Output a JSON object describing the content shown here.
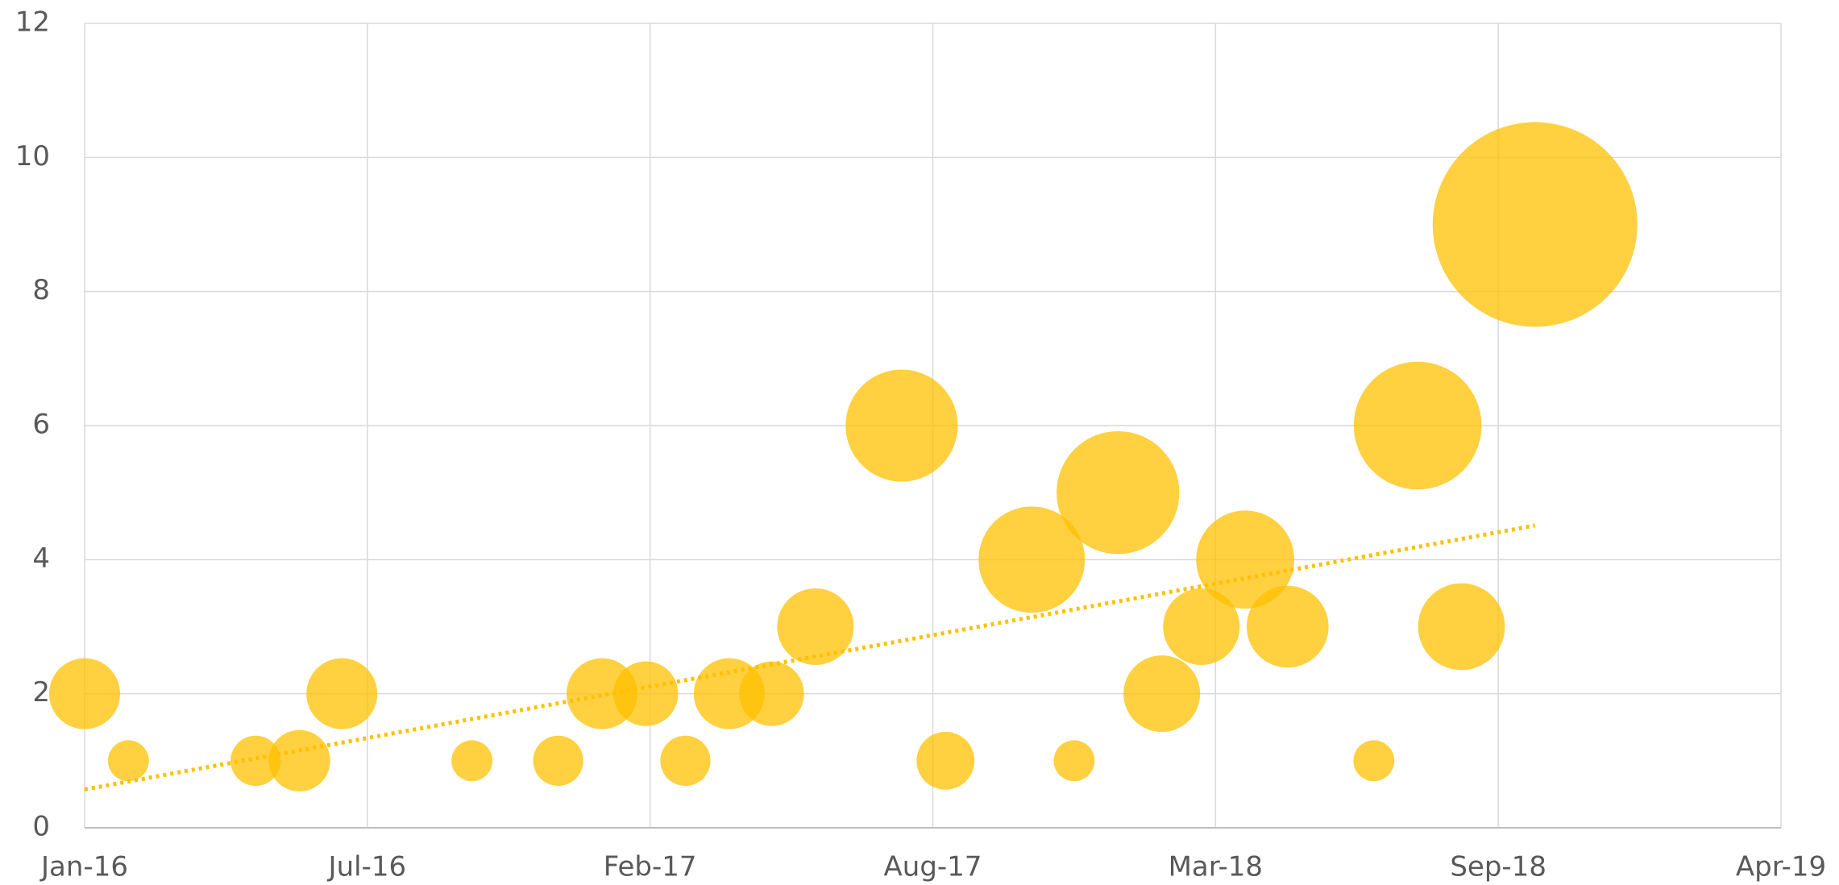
{
  "chart_data": {
    "type": "bubble",
    "x": [
      42370,
      42401,
      42491,
      42522,
      42552,
      42644,
      42705,
      42736,
      42767,
      42795,
      42826,
      42856,
      42887,
      42948,
      42979,
      43040,
      43070,
      43101,
      43132,
      43160,
      43191,
      43221,
      43282,
      43313,
      43344,
      43396
    ],
    "values": [
      2,
      1,
      1,
      1,
      2,
      1,
      1,
      2,
      2,
      1,
      2,
      2,
      3,
      6,
      1,
      4,
      1,
      5,
      2,
      3,
      4,
      3,
      1,
      6,
      3,
      9
    ],
    "sizes": [
      12,
      4,
      6,
      9,
      12,
      4,
      6,
      12,
      10,
      6,
      12,
      10,
      14,
      30,
      8,
      27,
      4,
      36,
      14,
      14,
      23,
      16,
      4,
      39,
      18,
      100
    ],
    "color": "#ffc000",
    "trendline": {
      "type": "linear",
      "color": "#ffc000"
    },
    "xlim": [
      42370,
      43570
    ],
    "xticks": [
      {
        "value": 42370,
        "label": "Jan-16"
      },
      {
        "value": 42570,
        "label": "Jul-16"
      },
      {
        "value": 42770,
        "label": "Feb-17"
      },
      {
        "value": 42970,
        "label": "Aug-17"
      },
      {
        "value": 43170,
        "label": "Mar-18"
      },
      {
        "value": 43370,
        "label": "Sep-18"
      },
      {
        "value": 43570,
        "label": "Apr-19"
      }
    ],
    "ylim": [
      0,
      12
    ],
    "yticks": [
      0,
      2,
      4,
      6,
      8,
      10,
      12
    ],
    "grid": true
  }
}
